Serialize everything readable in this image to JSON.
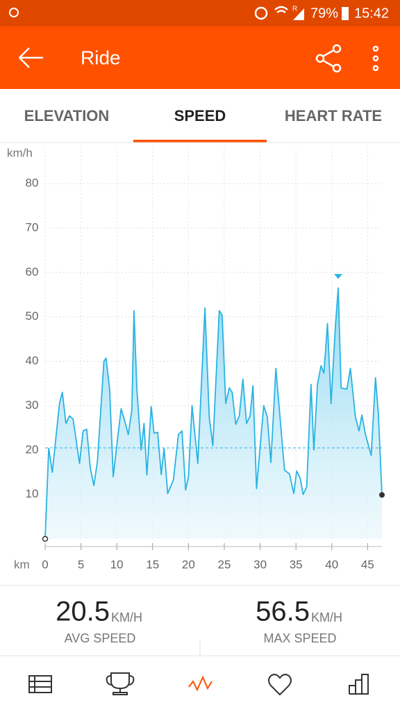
{
  "status_bar": {
    "battery": "79%",
    "time": "15:42",
    "signal_flag": "R"
  },
  "header": {
    "title": "Ride"
  },
  "tabs": [
    "ELEVATION",
    "SPEED",
    "HEART RATE"
  ],
  "chart_data": {
    "type": "line",
    "y_label": "km/h",
    "x_label": "km",
    "color": "#29b3e3",
    "x": [
      0,
      0.5,
      1,
      2,
      2.4,
      2.9,
      3.4,
      3.9,
      4.8,
      5.3,
      5.8,
      6.3,
      6.8,
      7.3,
      8.2,
      8.5,
      9,
      9.5,
      10,
      10.6,
      11.1,
      11.6,
      12.1,
      12.4,
      12.8,
      13.4,
      13.8,
      14.2,
      14.8,
      15.2,
      15.7,
      16.2,
      16.6,
      17.1,
      17.9,
      18.6,
      19.1,
      19.6,
      20,
      20.5,
      21.3,
      22.3,
      22.9,
      23.4,
      24.3,
      24.7,
      25.2,
      25.7,
      26.1,
      26.6,
      27.1,
      27.6,
      28.1,
      28.6,
      29,
      29.5,
      30.5,
      31,
      31.5,
      32.2,
      33.4,
      34.1,
      34.7,
      35.1,
      35.6,
      36,
      36.5,
      37.1,
      37.5,
      38,
      38.5,
      38.9,
      39.4,
      39.9,
      40.5,
      40.9,
      41.3,
      42.1,
      42.6,
      43.3,
      43.8,
      44.2,
      44.7,
      45.5,
      46.1,
      46.5,
      47
    ],
    "values": [
      0,
      20.4,
      15,
      30.5,
      33,
      26,
      27.7,
      27,
      17,
      24.3,
      24.7,
      16,
      12,
      17.5,
      40,
      40.7,
      33.7,
      14,
      21,
      29.3,
      26.6,
      23.5,
      29,
      51.4,
      33.7,
      20,
      26,
      14.4,
      29.8,
      23.8,
      24,
      14.5,
      20.4,
      10.2,
      13.3,
      23.5,
      24.3,
      11,
      14,
      30,
      17,
      52,
      27.4,
      21,
      51.4,
      50.4,
      30.5,
      34,
      33,
      25.8,
      27.7,
      36,
      26,
      27.7,
      34.5,
      11.3,
      30,
      27.5,
      17.2,
      38.4,
      15.5,
      14.6,
      10.2,
      15.3,
      13.6,
      10,
      11.7,
      34.8,
      20,
      34.8,
      39,
      37.3,
      48.5,
      30.5,
      47.8,
      56.5,
      34,
      33.7,
      38.4,
      27.4,
      24.3,
      27.9,
      23.5,
      18.8,
      36.3,
      28.2,
      9.9
    ],
    "xlim": [
      0,
      47
    ],
    "xticks": [
      0,
      5,
      10,
      15,
      20,
      25,
      30,
      35,
      40,
      45
    ],
    "ylim": [
      0,
      88
    ],
    "yticks": [
      10,
      20,
      30,
      40,
      50,
      60,
      70,
      80
    ],
    "grid": true
  },
  "stats": [
    {
      "value": 20.5,
      "unit": "KM/H",
      "label": "AVG SPEED"
    },
    {
      "value": 56.5,
      "unit": "KM/H",
      "label": "MAX SPEED"
    }
  ]
}
